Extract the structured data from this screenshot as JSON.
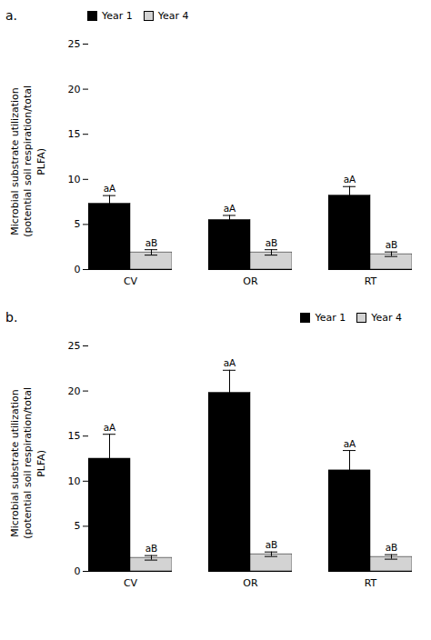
{
  "chart_data": [
    {
      "type": "bar",
      "title": "a.",
      "y_label": "Microbial substrate utilization\n(potential soil respiration/total\nPLFA)",
      "categories": [
        "CV",
        "OR",
        "RT"
      ],
      "series": [
        {
          "name": "Year 1",
          "color": "#000000",
          "values": [
            7.3,
            5.5,
            8.2
          ],
          "errors": [
            0.9,
            0.5,
            1.0
          ],
          "labels": [
            "aA",
            "aA",
            "aA"
          ]
        },
        {
          "name": "Year 4",
          "color": "#d3d3d3",
          "values": [
            1.9,
            1.9,
            1.7
          ],
          "errors": [
            0.3,
            0.3,
            0.25
          ],
          "labels": [
            "aB",
            "aB",
            "aB"
          ]
        }
      ],
      "ylim": [
        0,
        25
      ],
      "yticks": [
        0,
        5,
        10,
        15,
        20,
        25
      ],
      "legend": "upper left"
    },
    {
      "type": "bar",
      "title": "b.",
      "y_label": "Microbial substrate utilization\n(potential soil respiration/total\nPLFA)",
      "categories": [
        "CV",
        "OR",
        "RT"
      ],
      "series": [
        {
          "name": "Year 1",
          "color": "#000000",
          "values": [
            12.5,
            19.8,
            11.2
          ],
          "errors": [
            2.7,
            2.5,
            2.2
          ],
          "labels": [
            "aA",
            "aA",
            "aA"
          ]
        },
        {
          "name": "Year 4",
          "color": "#d3d3d3",
          "values": [
            1.5,
            1.9,
            1.6
          ],
          "errors": [
            0.25,
            0.25,
            0.25
          ],
          "labels": [
            "aB",
            "aB",
            "aB"
          ]
        }
      ],
      "ylim": [
        0,
        25
      ],
      "yticks": [
        0,
        5,
        10,
        15,
        20,
        25
      ],
      "legend": "upper right"
    }
  ]
}
